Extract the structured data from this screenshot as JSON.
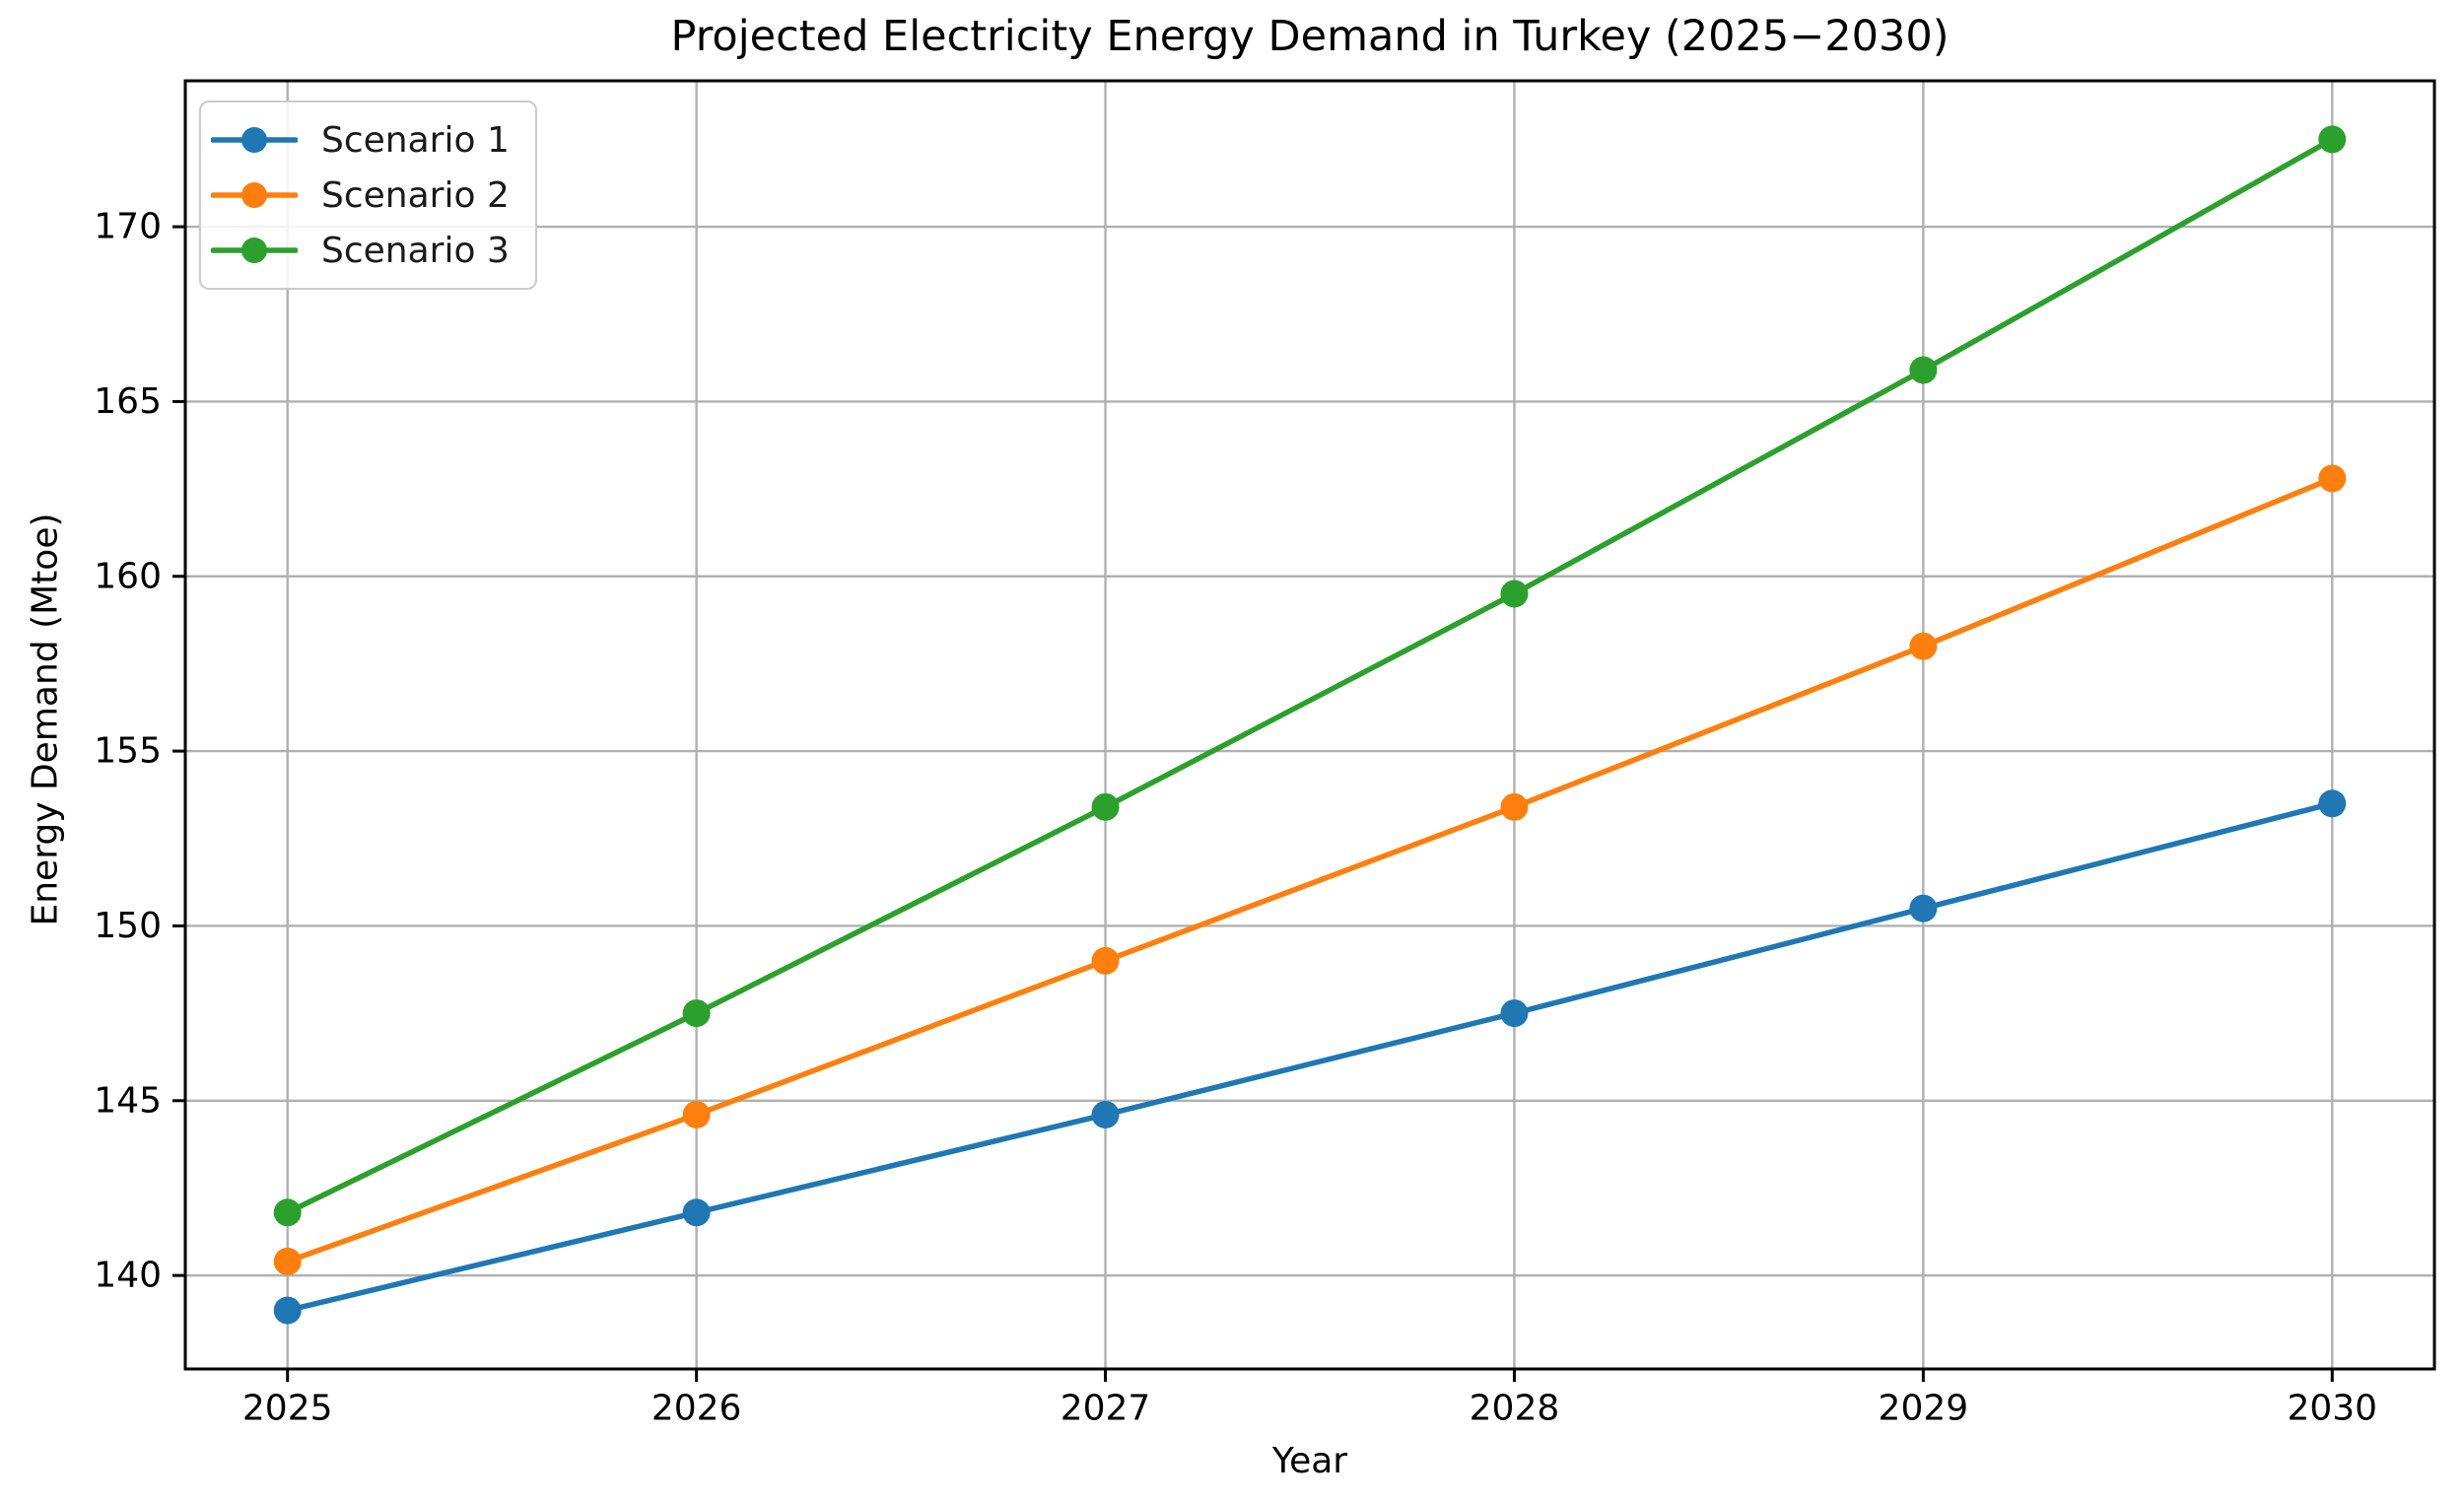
{
  "chart_data": {
    "type": "line",
    "title": "Projected Electricity Energy Demand in Turkey (2025−2030)",
    "xlabel": "Year",
    "ylabel": "Energy Demand (Mtoe)",
    "x": [
      2025,
      2026,
      2027,
      2028,
      2029,
      2030
    ],
    "series": [
      {
        "name": "Scenario 1",
        "color": "#1f77b4",
        "values": [
          139.0,
          141.8,
          144.6,
          147.5,
          150.5,
          153.5
        ]
      },
      {
        "name": "Scenario 2",
        "color": "#ff7f0e",
        "values": [
          140.4,
          144.6,
          149.0,
          153.4,
          158.0,
          162.8
        ]
      },
      {
        "name": "Scenario 3",
        "color": "#2ca02c",
        "values": [
          141.8,
          147.5,
          153.4,
          159.5,
          165.9,
          172.5
        ]
      }
    ],
    "xlim": [
      2024.75,
      2030.25
    ],
    "ylim": [
      137.325,
      174.175
    ],
    "xticks": [
      2025,
      2026,
      2027,
      2028,
      2029,
      2030
    ],
    "yticks": [
      140,
      145,
      150,
      155,
      160,
      165,
      170
    ],
    "grid": true,
    "legend_position": "upper left",
    "colors": {
      "grid": "#b0b0b0",
      "spine": "#000000",
      "tick_text": "#000000",
      "background": "#ffffff"
    }
  }
}
